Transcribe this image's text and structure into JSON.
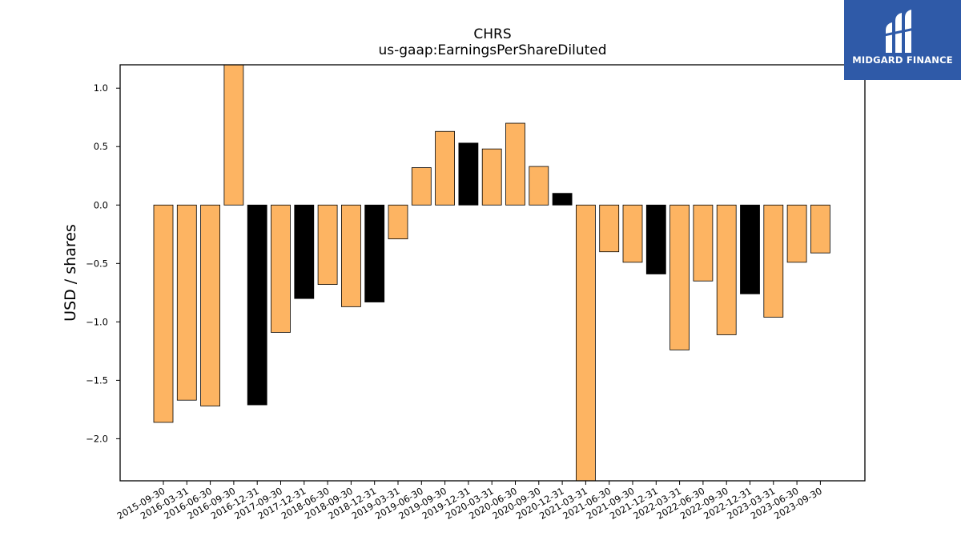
{
  "logo": {
    "text": "MIDGARD FINANCE",
    "background": "#2f5aa8"
  },
  "colors": {
    "positive_neg": "#fdb462",
    "highlight": "#000000"
  },
  "chart_data": {
    "type": "bar",
    "title": "CHRS",
    "subtitle": "us-gaap:EarningsPerShareDiluted",
    "xlabel": "",
    "ylabel": "USD / shares",
    "ylim": [
      -2.36,
      1.2
    ],
    "yticks": [
      1.0,
      0.5,
      0.0,
      -0.5,
      -1.0,
      -1.5,
      -2.0
    ],
    "ytick_labels": [
      "1.0",
      "0.5",
      "0.0",
      "−0.5",
      "−1.0",
      "−1.5",
      "−2.0"
    ],
    "grid": false,
    "categories": [
      "2015-09-30",
      "2016-03-31",
      "2016-06-30",
      "2016-09-30",
      "2016-12-31",
      "2017-09-30",
      "2017-12-31",
      "2018-06-30",
      "2018-09-30",
      "2018-12-31",
      "2019-03-31",
      "2019-06-30",
      "2019-09-30",
      "2019-12-31",
      "2020-03-31",
      "2020-06-30",
      "2020-09-30",
      "2020-12-31",
      "2021-03-31",
      "2021-06-30",
      "2021-09-30",
      "2021-12-31",
      "2022-03-31",
      "2022-06-30",
      "2022-09-30",
      "2022-12-31",
      "2023-03-31",
      "2023-06-30",
      "2023-09-30"
    ],
    "values": [
      -1.86,
      -1.67,
      -1.72,
      1.21,
      -1.71,
      -1.09,
      -0.8,
      -0.68,
      -0.87,
      -0.83,
      -0.29,
      0.32,
      0.63,
      0.53,
      0.48,
      0.7,
      0.33,
      0.1,
      -2.5,
      -0.4,
      -0.49,
      -0.59,
      -1.24,
      -0.65,
      -1.11,
      -0.76,
      -0.96,
      -0.49,
      -0.41
    ],
    "highlight": [
      false,
      false,
      false,
      false,
      true,
      false,
      true,
      false,
      false,
      true,
      false,
      false,
      false,
      true,
      false,
      false,
      false,
      true,
      false,
      false,
      false,
      true,
      false,
      false,
      false,
      true,
      false,
      false,
      false
    ]
  }
}
